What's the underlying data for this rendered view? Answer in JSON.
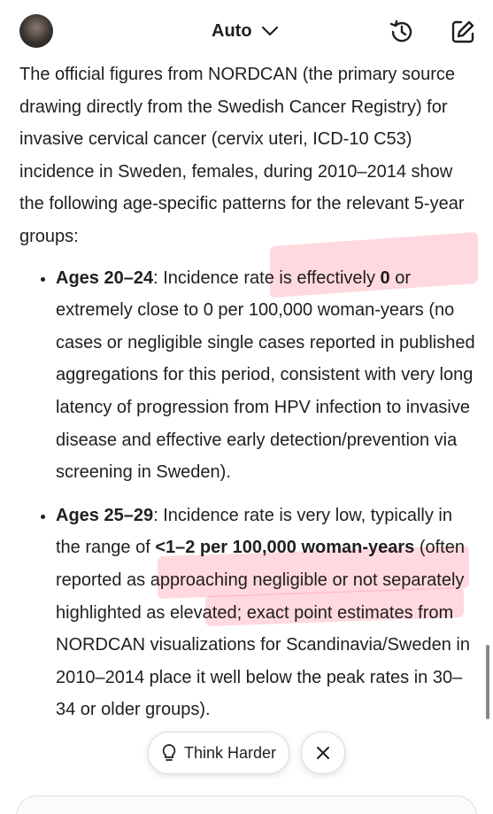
{
  "header": {
    "model": "Auto"
  },
  "intro": "The official figures from NORDCAN (the primary source drawing directly from the Swedish Cancer Registry) for invasive cervical cancer (cervix uteri, ICD-10 C53) incidence in Sweden, females, during 2010–2014 show the following age-specific patterns for the relevant 5-year groups:",
  "bullets": [
    {
      "parts": [
        {
          "text": "Ages 20–24",
          "bold": true
        },
        {
          "text": ": Incidence rate is effectively ",
          "bold": false
        },
        {
          "text": "0",
          "bold": true
        },
        {
          "text": " or extremely close to 0 per 100,000 woman-years (no cases or negligible single cases reported in published aggregations for this period, consistent with very long latency of progression from HPV infection to invasive disease and effective early detection/prevention via screening in Sweden).",
          "bold": false
        }
      ]
    },
    {
      "parts": [
        {
          "text": "Ages 25–29",
          "bold": true
        },
        {
          "text": ": Incidence rate is very low, typically in the range of ",
          "bold": false
        },
        {
          "text": "<1–2 per 100,000 woman-years",
          "bold": true
        },
        {
          "text": " (often reported as approaching negligible or not separately highlighted as elevated; exact point estimates from NORDCAN visualizations for Scandinavia/Sweden in 2010–2014 place it well below the peak rates in 30–34 or older groups).",
          "bold": false
        }
      ]
    }
  ],
  "actions": {
    "think_harder": "Think Harder"
  }
}
